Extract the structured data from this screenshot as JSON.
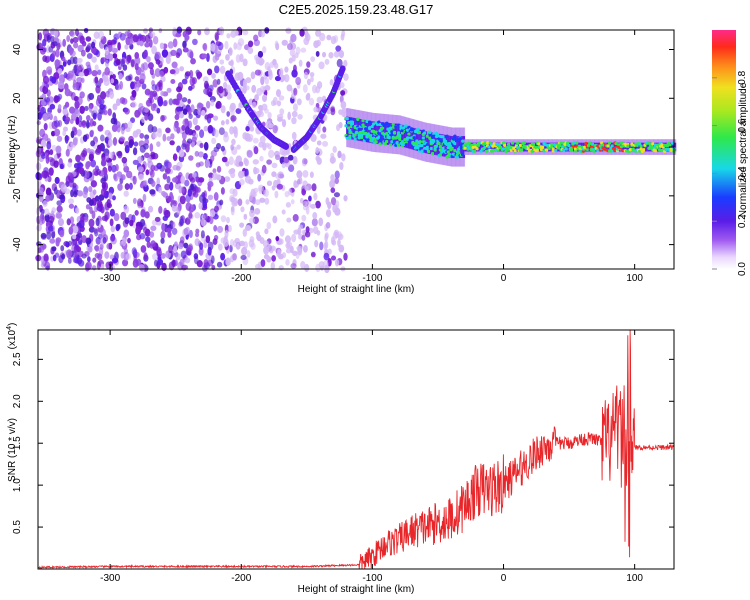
{
  "title": "C2E5.2025.159.23.48.G17",
  "colors": {
    "snr_line": "#e8262a",
    "axis": "#000000",
    "spectrogram_base": "#7a1fd6"
  },
  "chart_data": [
    {
      "type": "heatmap",
      "xlabel": "Height of straight line (km)",
      "ylabel": "Frequency (Hz)",
      "xlim": [
        -355,
        130
      ],
      "ylim": [
        -50,
        48
      ],
      "x_ticks": [
        -300,
        -200,
        -100,
        0,
        100
      ],
      "y_ticks": [
        -40,
        -20,
        0,
        20,
        40
      ],
      "colorbar": {
        "label": "Normalized spectral amplitude",
        "range": [
          0,
          1
        ],
        "ticks": [
          0.0,
          0.2,
          0.4,
          0.6,
          0.8
        ]
      },
      "features": {
        "noise_region_x": [
          -355,
          -120
        ],
        "arc_left": [
          [
            -210,
            30
          ],
          [
            -195,
            16
          ],
          [
            -185,
            8
          ],
          [
            -175,
            3
          ],
          [
            -165,
            0
          ]
        ],
        "arc_right": [
          [
            -160,
            -1
          ],
          [
            -150,
            4
          ],
          [
            -140,
            12
          ],
          [
            -130,
            22
          ],
          [
            -122,
            33
          ]
        ],
        "band_center": [
          [
            -120,
            8
          ],
          [
            -100,
            6
          ],
          [
            -80,
            5
          ],
          [
            -60,
            2
          ],
          [
            -40,
            0
          ],
          [
            0,
            0
          ],
          [
            100,
            0
          ],
          [
            130,
            0
          ]
        ]
      }
    },
    {
      "type": "line",
      "xlabel": "Height of straight line (km)",
      "ylabel": "SNR (10 * v/v)",
      "y_multiplier": "(x10",
      "y_multiplier_exp": "4",
      "y_multiplier_close": ")",
      "xlim": [
        -355,
        130
      ],
      "ylim": [
        0,
        2.85
      ],
      "x_ticks": [
        -300,
        -200,
        -100,
        0,
        100
      ],
      "y_ticks": [
        0.5,
        1.0,
        1.5,
        2.0,
        2.5
      ],
      "series": [
        {
          "x": [
            -355,
            -300,
            -250,
            -200,
            -150,
            -110,
            -100,
            -90,
            -80,
            -70,
            -60,
            -50,
            -40,
            -30,
            -20,
            -10,
            0,
            10,
            20,
            30,
            40,
            50,
            60,
            70,
            75,
            80,
            85,
            88,
            90,
            92,
            94,
            96,
            98,
            100,
            110,
            120,
            130
          ],
          "y": [
            0.02,
            0.03,
            0.03,
            0.03,
            0.03,
            0.05,
            0.15,
            0.3,
            0.35,
            0.45,
            0.5,
            0.55,
            0.6,
            0.75,
            0.95,
            0.95,
            1.0,
            1.15,
            1.3,
            1.45,
            1.5,
            1.5,
            1.55,
            1.55,
            1.5,
            1.5,
            1.6,
            1.7,
            1.5,
            1.8,
            1.4,
            1.9,
            1.5,
            1.45,
            1.45,
            1.45,
            1.45
          ]
        }
      ]
    }
  ]
}
